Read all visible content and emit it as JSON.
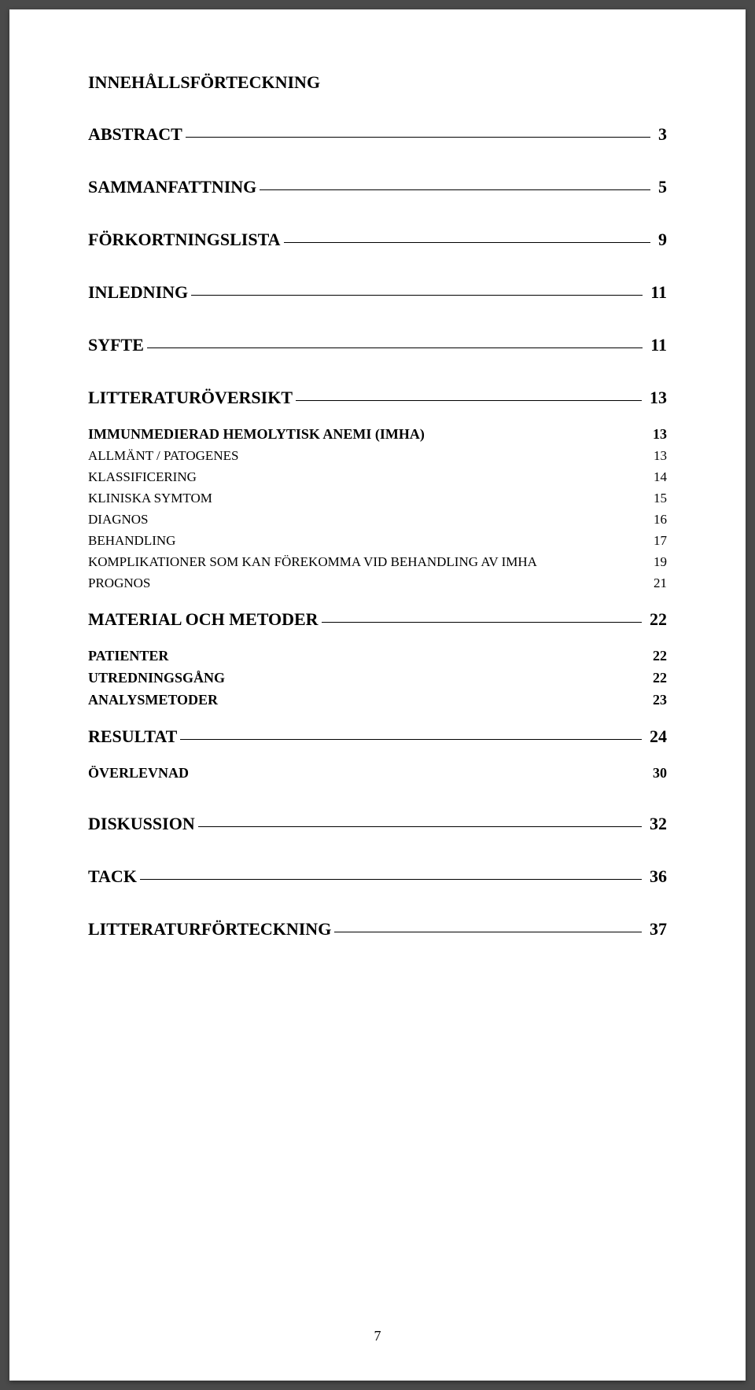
{
  "title": "INNEHÅLLSFÖRTECKNING",
  "pageNumber": "7",
  "entries": [
    {
      "label": "ABSTRACT",
      "page": "3",
      "level": "major",
      "underline": true,
      "gapAfter": "major"
    },
    {
      "label": "SAMMANFATTNING",
      "page": "5",
      "level": "major",
      "underline": true,
      "gapAfter": "major"
    },
    {
      "label": "FÖRKORTNINGSLISTA",
      "page": "9",
      "level": "major",
      "underline": true,
      "gapAfter": "major"
    },
    {
      "label": "INLEDNING",
      "page": "11",
      "level": "major",
      "underline": true,
      "gapAfter": "major"
    },
    {
      "label": "SYFTE",
      "page": "11",
      "level": "major",
      "underline": true,
      "gapAfter": "major"
    },
    {
      "label": "LITTERATURÖVERSIKT",
      "page": "13",
      "level": "major",
      "underline": true,
      "gapAfter": "group"
    },
    {
      "label": "IMMUNMEDIERAD HEMOLYTISK ANEMI (IMHA)",
      "page": "13",
      "level": "sub",
      "underline": false,
      "gapAfter": "sub"
    },
    {
      "label": "ALLMÄNT / PATOGENES",
      "page": "13",
      "level": "subsub",
      "underline": false,
      "gapAfter": "sub"
    },
    {
      "label": "KLASSIFICERING",
      "page": "14",
      "level": "subsub",
      "underline": false,
      "gapAfter": "sub"
    },
    {
      "label": "KLINISKA SYMTOM",
      "page": "15",
      "level": "subsub",
      "underline": false,
      "gapAfter": "sub"
    },
    {
      "label": "DIAGNOS",
      "page": "16",
      "level": "subsub",
      "underline": false,
      "gapAfter": "sub"
    },
    {
      "label": "BEHANDLING",
      "page": "17",
      "level": "subsub",
      "underline": false,
      "gapAfter": "sub"
    },
    {
      "label": "KOMPLIKATIONER SOM KAN FÖREKOMMA VID BEHANDLING AV IMHA",
      "page": "19",
      "level": "subsub",
      "underline": false,
      "gapAfter": "sub"
    },
    {
      "label": "PROGNOS",
      "page": "21",
      "level": "subsub",
      "underline": false,
      "gapAfter": "group"
    },
    {
      "label": "MATERIAL OCH METODER",
      "page": "22",
      "level": "major",
      "underline": true,
      "gapAfter": "group"
    },
    {
      "label": "PATIENTER",
      "page": "22",
      "level": "sub",
      "underline": false,
      "gapAfter": "sub"
    },
    {
      "label": "UTREDNINGSGÅNG",
      "page": "22",
      "level": "sub",
      "underline": false,
      "gapAfter": "sub"
    },
    {
      "label": "ANALYSMETODER",
      "page": "23",
      "level": "sub",
      "underline": false,
      "gapAfter": "group"
    },
    {
      "label": "RESULTAT",
      "page": "24",
      "level": "major",
      "underline": true,
      "gapAfter": "group"
    },
    {
      "label": "ÖVERLEVNAD",
      "page": "30",
      "level": "sub",
      "underline": false,
      "gapAfter": "major"
    },
    {
      "label": "DISKUSSION",
      "page": "32",
      "level": "major",
      "underline": true,
      "gapAfter": "major"
    },
    {
      "label": "TACK",
      "page": "36",
      "level": "major",
      "underline": true,
      "gapAfter": "major"
    },
    {
      "label": "LITTERATURFÖRTECKNING",
      "page": "37",
      "level": "major",
      "underline": true,
      "gapAfter": "major"
    }
  ]
}
